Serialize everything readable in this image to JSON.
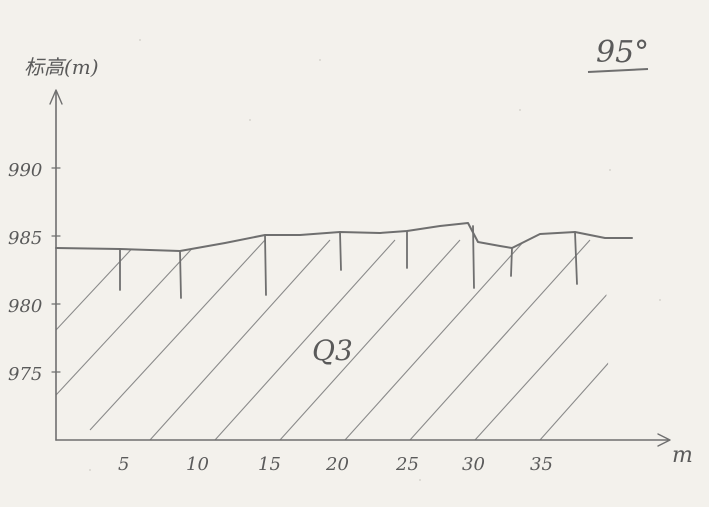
{
  "diagram": {
    "y_axis_label": "标高(m)",
    "x_axis_label": "m",
    "corner_label": "95°",
    "zone_label": "Q3",
    "y_ticks": [
      "990",
      "985",
      "980",
      "975"
    ],
    "x_ticks": [
      "5",
      "10",
      "15",
      "20",
      "25",
      "30",
      "35"
    ]
  }
}
